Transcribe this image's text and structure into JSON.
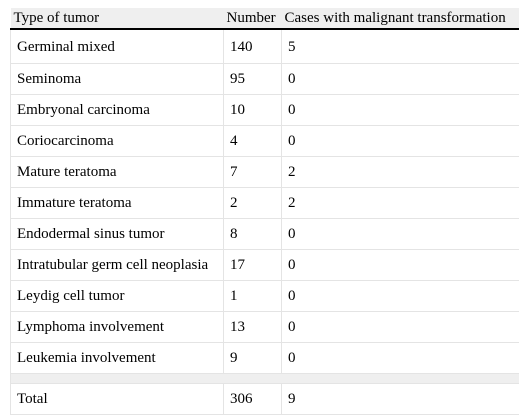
{
  "table": {
    "headers": [
      "Type of tumor",
      "Number",
      "Cases with malignant transformation"
    ],
    "rows": [
      [
        "Germinal mixed",
        "140",
        "5"
      ],
      [
        "Seminoma",
        "95",
        "0"
      ],
      [
        "Embryonal carcinoma",
        "10",
        "0"
      ],
      [
        "Coriocarcinoma",
        "4",
        "0"
      ],
      [
        "Mature teratoma",
        "7",
        "2"
      ],
      [
        "Immature teratoma",
        "2",
        "2"
      ],
      [
        "Endodermal sinus tumor",
        "8",
        "0"
      ],
      [
        "Intratubular germ cell neoplasia",
        "17",
        "0"
      ],
      [
        "Leydig cell tumor",
        "1",
        "0"
      ],
      [
        "Lymphoma involvement",
        "13",
        "0"
      ],
      [
        "Leukemia involvement",
        "9",
        "0"
      ]
    ],
    "total": [
      "Total",
      "306",
      "9"
    ]
  }
}
